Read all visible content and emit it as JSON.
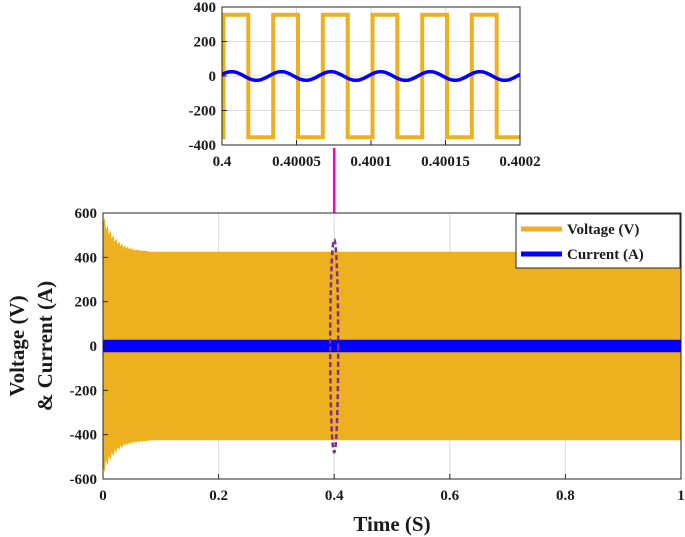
{
  "chart_data": [
    {
      "id": "main",
      "type": "line",
      "title": "",
      "xlabel": "Time (S)",
      "ylabel_lines": [
        "Voltage (V)",
        "& Current (A)"
      ],
      "xlim": [
        0,
        1
      ],
      "ylim": [
        -600,
        600
      ],
      "xticks": [
        0,
        0.2,
        0.4,
        0.6,
        0.8,
        1
      ],
      "xtick_labels": [
        "0",
        "0.2",
        "0.4",
        "0.6",
        "0.8",
        "1"
      ],
      "yticks": [
        600,
        400,
        200,
        0,
        -200,
        -400,
        -600
      ],
      "ytick_labels": [
        "600",
        "400",
        "200",
        "0",
        "-200",
        "-400",
        "-600"
      ],
      "grid": true,
      "legend_position": "top-right",
      "series": [
        {
          "name": "Voltage (V)",
          "color": "#EDB120",
          "style": "dense square-wave envelope",
          "steady_amplitude": 425,
          "initial_transient": {
            "start": 0,
            "end": 0.08,
            "peak_pos": 580,
            "peak_neg": -570
          }
        },
        {
          "name": "Current (A)",
          "color": "#0000FF",
          "style": "dense sinusoidal envelope",
          "steady_amplitude": 28
        }
      ],
      "zoom_marker": {
        "x": 0.4,
        "ylim": [
          -480,
          480
        ],
        "color": "#7E2F8E",
        "arrow_color": "#FF00CC"
      }
    },
    {
      "id": "inset",
      "type": "line",
      "title": "",
      "xlim": [
        0.4,
        0.4002
      ],
      "ylim": [
        -400,
        400
      ],
      "xticks": [
        0.4,
        0.40005,
        0.4001,
        0.40015,
        0.4002
      ],
      "xtick_labels": [
        "0.4",
        "0.40005",
        "0.4001",
        "0.40015",
        "0.4002"
      ],
      "yticks": [
        400,
        200,
        0,
        -200,
        -400
      ],
      "ytick_labels": [
        "400",
        "200",
        "0",
        "-200",
        "-400"
      ],
      "grid": true,
      "series": [
        {
          "name": "Voltage (V)",
          "color": "#EDB120",
          "wave": "square",
          "amplitude": 355,
          "cycles": 6
        },
        {
          "name": "Current (A)",
          "color": "#0000FF",
          "wave": "sine",
          "amplitude": 25,
          "cycles": 6
        }
      ]
    }
  ],
  "legend": {
    "items": [
      {
        "label": "Voltage (V)",
        "color": "#EDB120"
      },
      {
        "label": "Current (A)",
        "color": "#0000FF"
      }
    ]
  }
}
